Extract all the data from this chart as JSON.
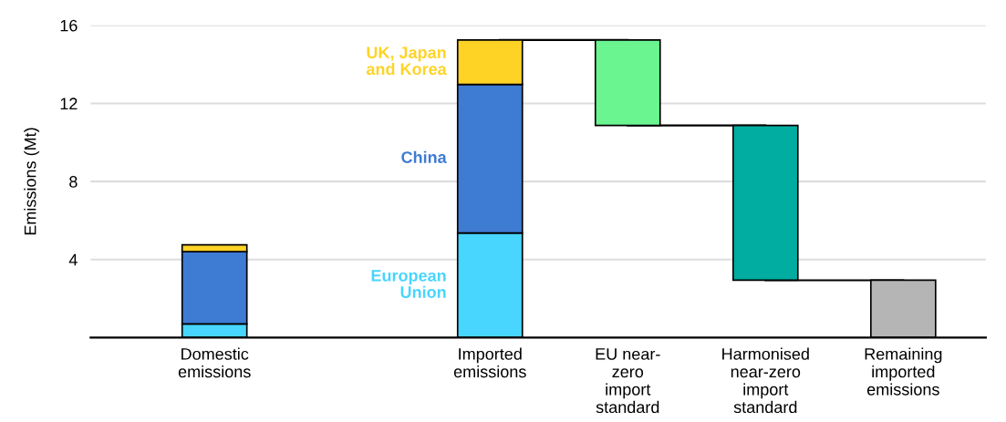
{
  "chart_data": {
    "type": "bar",
    "stacked": true,
    "ylabel": "Emissions (Mt)",
    "categories": [
      "Domestic\nemissions",
      null,
      "Imported\nemissions",
      "EU near-\nzero\nimport\nstandard",
      "Harmonised\nnear-zero\nimport\nstandard",
      "Remaining\nimported\nemissions"
    ],
    "series": [
      {
        "name": "European\nUnion",
        "color": "#48d5fe",
        "values": [
          0.7,
          null,
          5.36,
          null,
          null,
          null
        ]
      },
      {
        "name": "China",
        "color": "#3e7bd3",
        "values": [
          3.7,
          null,
          7.61,
          null,
          null,
          null
        ]
      },
      {
        "name": "UK, Japan\nand Korea",
        "color": "#fed326",
        "values": [
          0.35,
          null,
          2.28,
          null,
          null,
          null
        ]
      },
      {
        "colors": [
          null,
          null,
          null,
          "#6af590",
          "#00ada0",
          "#b5b5b5"
        ],
        "base": [
          null,
          null,
          null,
          10.87,
          2.94,
          0
        ],
        "values": [
          null,
          null,
          null,
          4.38,
          7.93,
          2.94
        ]
      }
    ],
    "ylim": [
      0,
      16
    ],
    "yticks": [
      4,
      8,
      12,
      16
    ],
    "grid": "y",
    "legend": false
  }
}
